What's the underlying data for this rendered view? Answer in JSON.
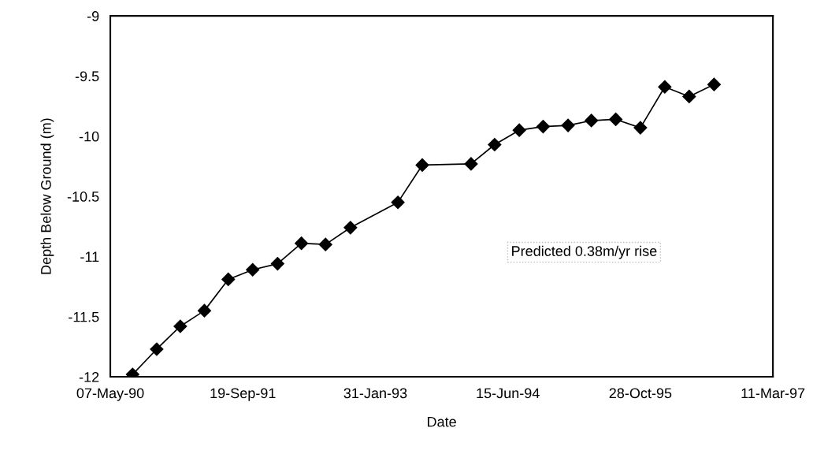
{
  "chart_data": {
    "type": "line",
    "xlabel": "Date",
    "ylabel": "Depth Below Ground (m)",
    "x": [
      "1990-07-30",
      "1990-10-29",
      "1991-01-26",
      "1991-04-27",
      "1991-07-26",
      "1991-10-26",
      "1992-01-28",
      "1992-04-27",
      "1992-07-27",
      "1992-10-29",
      "1993-04-26",
      "1993-07-27",
      "1994-01-27",
      "1994-04-26",
      "1994-07-28",
      "1994-10-26",
      "1995-01-28",
      "1995-04-26",
      "1995-07-27",
      "1995-10-28",
      "1996-01-28",
      "1996-04-29",
      "1996-08-01"
    ],
    "series": [
      {
        "color": "#000000",
        "values": [
          -11.98,
          -11.77,
          -11.58,
          -11.45,
          -11.19,
          -11.11,
          -11.06,
          -10.89,
          -10.9,
          -10.76,
          -10.55,
          -10.24,
          -10.23,
          -10.07,
          -9.95,
          -9.92,
          -9.91,
          -9.87,
          -9.86,
          -9.93,
          -9.59,
          -9.67,
          -9.57
        ]
      }
    ],
    "xlim": [
      "1990-05-07",
      "1997-03-11"
    ],
    "xticks": [
      {
        "value": "1990-05-07",
        "label": "07-May-90"
      },
      {
        "value": "1991-09-19",
        "label": "19-Sep-91"
      },
      {
        "value": "1993-01-31",
        "label": "31-Jan-93"
      },
      {
        "value": "1994-06-15",
        "label": "15-Jun-94"
      },
      {
        "value": "1995-10-28",
        "label": "28-Oct-95"
      },
      {
        "value": "1997-03-11",
        "label": "11-Mar-97"
      }
    ],
    "ylim": [
      -12,
      -9
    ],
    "yticks": [
      -12,
      -11.5,
      -11,
      -10.5,
      -10,
      -9.5,
      -9
    ],
    "annotations": [
      "Predicted 0.38m/yr rise"
    ],
    "grid": false,
    "legend": false,
    "marker": "diamond",
    "line_style": "solid"
  }
}
